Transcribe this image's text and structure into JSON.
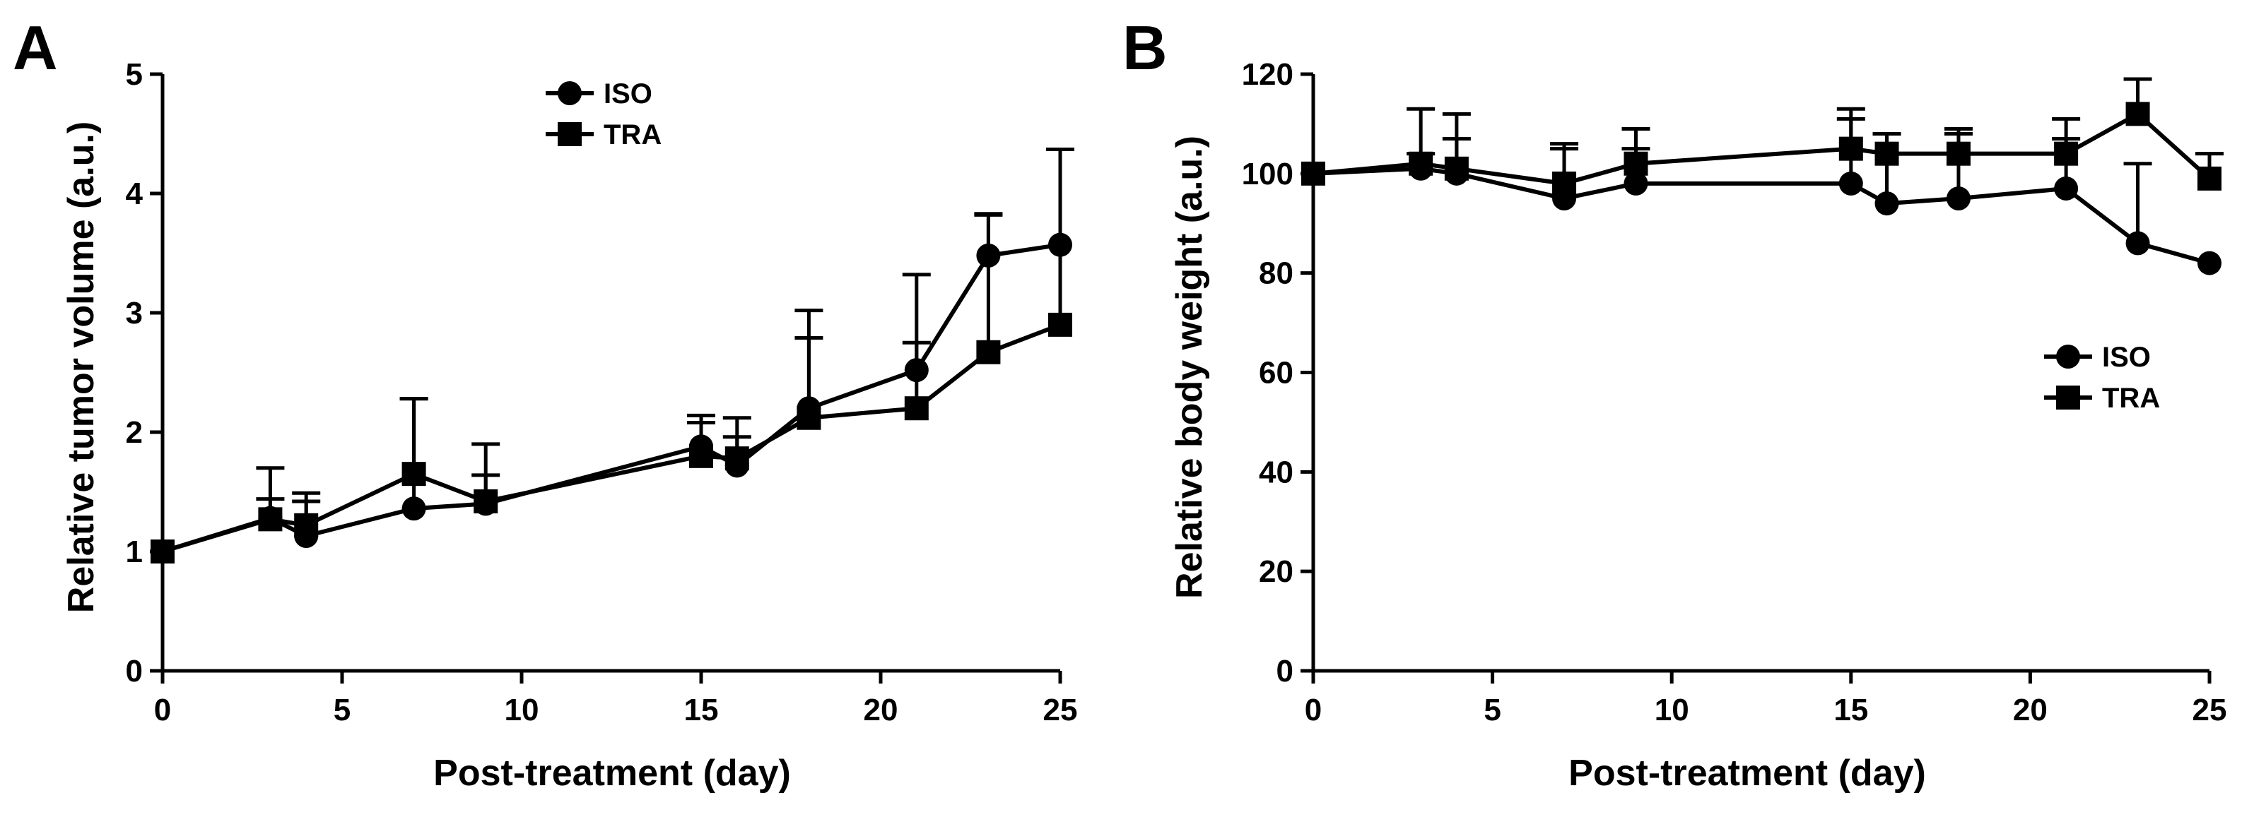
{
  "figure": {
    "panels": [
      {
        "letter": "A",
        "chart_index": 0
      },
      {
        "letter": "B",
        "chart_index": 1
      }
    ]
  },
  "chart_data": [
    {
      "type": "line",
      "panel": "A",
      "title": "",
      "xlabel": "Post-treatment (day)",
      "ylabel": "Relative tumor volume (a.u.)",
      "xlim": [
        0,
        25
      ],
      "ylim": [
        0,
        5
      ],
      "xticks": [
        0,
        5,
        10,
        15,
        20,
        25
      ],
      "yticks": [
        0,
        1,
        2,
        3,
        4,
        5
      ],
      "grid": false,
      "legend_position": "top-center",
      "series": [
        {
          "name": "ISO",
          "marker": "circle",
          "x": [
            0,
            3,
            4,
            7,
            9,
            15,
            16,
            18,
            21,
            23,
            25
          ],
          "y": [
            1.0,
            1.28,
            1.13,
            1.36,
            1.4,
            1.88,
            1.72,
            2.2,
            2.52,
            3.48,
            3.57
          ],
          "error_upper": [
            0,
            0.42,
            0.36,
            0.92,
            0.5,
            0.26,
            0.4,
            0.82,
            0.8,
            0.35,
            0.8
          ]
        },
        {
          "name": "TRA",
          "marker": "square",
          "x": [
            0,
            3,
            4,
            7,
            9,
            15,
            16,
            18,
            21,
            23,
            25
          ],
          "y": [
            1.0,
            1.27,
            1.22,
            1.65,
            1.42,
            1.8,
            1.78,
            2.12,
            2.2,
            2.67,
            2.9
          ],
          "error_upper": [
            0,
            0.17,
            0.2,
            0.63,
            0.22,
            0.28,
            0.18,
            0.67,
            0.55,
            1.15,
            1.47
          ]
        }
      ]
    },
    {
      "type": "line",
      "panel": "B",
      "title": "",
      "xlabel": "Post-treatment (day)",
      "ylabel": "Relative body weight (a.u.)",
      "xlim": [
        0,
        25
      ],
      "ylim": [
        0,
        120
      ],
      "xticks": [
        0,
        5,
        10,
        15,
        20,
        25
      ],
      "yticks": [
        0,
        20,
        40,
        60,
        80,
        100,
        120
      ],
      "grid": false,
      "legend_position": "middle-right",
      "series": [
        {
          "name": "ISO",
          "marker": "circle",
          "x": [
            0,
            3,
            4,
            7,
            9,
            15,
            16,
            18,
            21,
            23,
            25
          ],
          "y": [
            100,
            101,
            100,
            95,
            98,
            98,
            94,
            95,
            97,
            86,
            82
          ],
          "error_upper": [
            0,
            3,
            7,
            10,
            7,
            13,
            14,
            13,
            10,
            16,
            0
          ]
        },
        {
          "name": "TRA",
          "marker": "square",
          "x": [
            0,
            3,
            4,
            7,
            9,
            15,
            16,
            18,
            21,
            23,
            25
          ],
          "y": [
            100,
            102,
            101,
            98,
            102,
            105,
            104,
            104,
            104,
            112,
            99
          ],
          "error_upper": [
            0,
            11,
            11,
            8,
            7,
            8,
            4,
            5,
            7,
            7,
            5
          ]
        }
      ]
    }
  ]
}
